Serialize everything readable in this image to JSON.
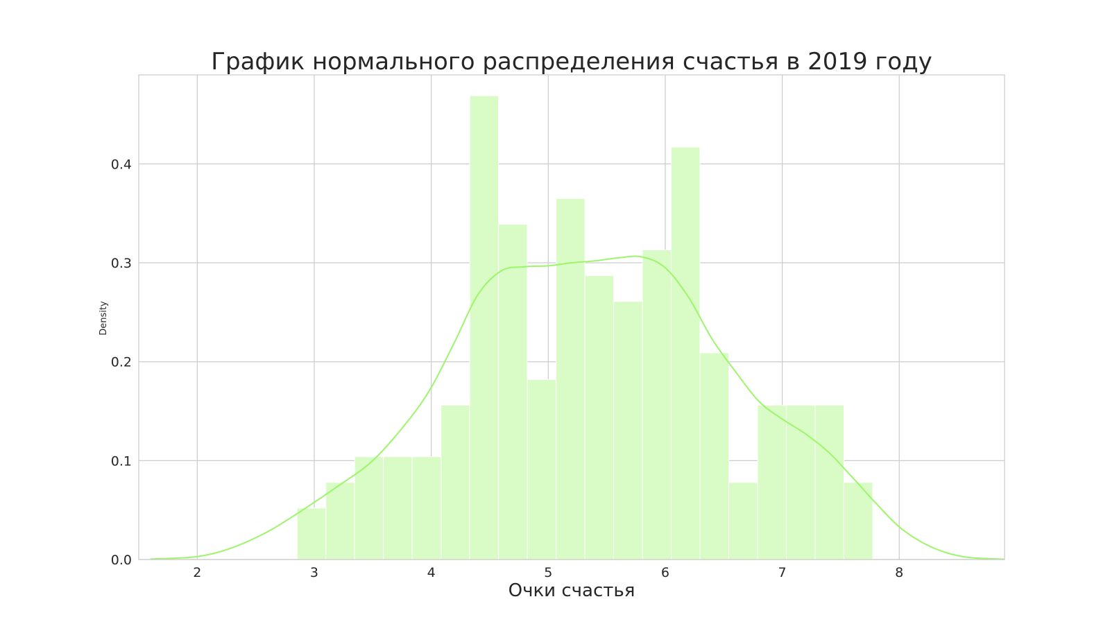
{
  "chart_data": {
    "type": "histogram",
    "title": "График нормального распределения счастья в 2019 году",
    "xlabel": "Очки счастья",
    "ylabel": "Density",
    "xlim": [
      1.5,
      8.9
    ],
    "ylim": [
      0,
      0.49
    ],
    "x_ticks": [
      2,
      3,
      4,
      5,
      6,
      7,
      8
    ],
    "y_ticks": [
      0.0,
      0.1,
      0.2,
      0.3,
      0.4
    ],
    "y_tick_labels": [
      "0.0",
      "0.1",
      "0.2",
      "0.3",
      "0.4"
    ],
    "grid": true,
    "bar_color": "#d9fcc6",
    "line_color": "#9cf56a",
    "grid_color": "#cccccc",
    "bins": [
      {
        "x0": 2.853,
        "x1": 3.099,
        "density": 0.052
      },
      {
        "x0": 3.099,
        "x1": 3.345,
        "density": 0.078
      },
      {
        "x0": 3.345,
        "x1": 3.591,
        "density": 0.104
      },
      {
        "x0": 3.591,
        "x1": 3.837,
        "density": 0.104
      },
      {
        "x0": 3.837,
        "x1": 4.083,
        "density": 0.104
      },
      {
        "x0": 4.083,
        "x1": 4.329,
        "density": 0.156
      },
      {
        "x0": 4.329,
        "x1": 4.575,
        "density": 0.469
      },
      {
        "x0": 4.575,
        "x1": 4.821,
        "density": 0.339
      },
      {
        "x0": 4.821,
        "x1": 5.067,
        "density": 0.182
      },
      {
        "x0": 5.067,
        "x1": 5.313,
        "density": 0.365
      },
      {
        "x0": 5.313,
        "x1": 5.559,
        "density": 0.287
      },
      {
        "x0": 5.559,
        "x1": 5.805,
        "density": 0.261
      },
      {
        "x0": 5.805,
        "x1": 6.051,
        "density": 0.313
      },
      {
        "x0": 6.051,
        "x1": 6.297,
        "density": 0.417
      },
      {
        "x0": 6.297,
        "x1": 6.543,
        "density": 0.209
      },
      {
        "x0": 6.543,
        "x1": 6.789,
        "density": 0.078
      },
      {
        "x0": 6.789,
        "x1": 7.035,
        "density": 0.156
      },
      {
        "x0": 7.035,
        "x1": 7.281,
        "density": 0.156
      },
      {
        "x0": 7.281,
        "x1": 7.527,
        "density": 0.156
      },
      {
        "x0": 7.527,
        "x1": 7.773,
        "density": 0.078
      }
    ],
    "kde": {
      "x": [
        1.6,
        2.0,
        2.3,
        2.6,
        2.9,
        3.2,
        3.5,
        3.8,
        4.0,
        4.2,
        4.4,
        4.6,
        4.8,
        5.0,
        5.2,
        5.4,
        5.6,
        5.8,
        6.0,
        6.2,
        6.4,
        6.6,
        6.8,
        7.0,
        7.2,
        7.4,
        7.6,
        7.8,
        8.0,
        8.2,
        8.4,
        8.6,
        8.9
      ],
      "y": [
        0.0005,
        0.003,
        0.012,
        0.028,
        0.05,
        0.074,
        0.1,
        0.14,
        0.174,
        0.22,
        0.268,
        0.292,
        0.296,
        0.297,
        0.3,
        0.302,
        0.305,
        0.306,
        0.295,
        0.265,
        0.223,
        0.19,
        0.16,
        0.142,
        0.127,
        0.108,
        0.083,
        0.057,
        0.033,
        0.017,
        0.007,
        0.002,
        0.0003
      ]
    }
  }
}
